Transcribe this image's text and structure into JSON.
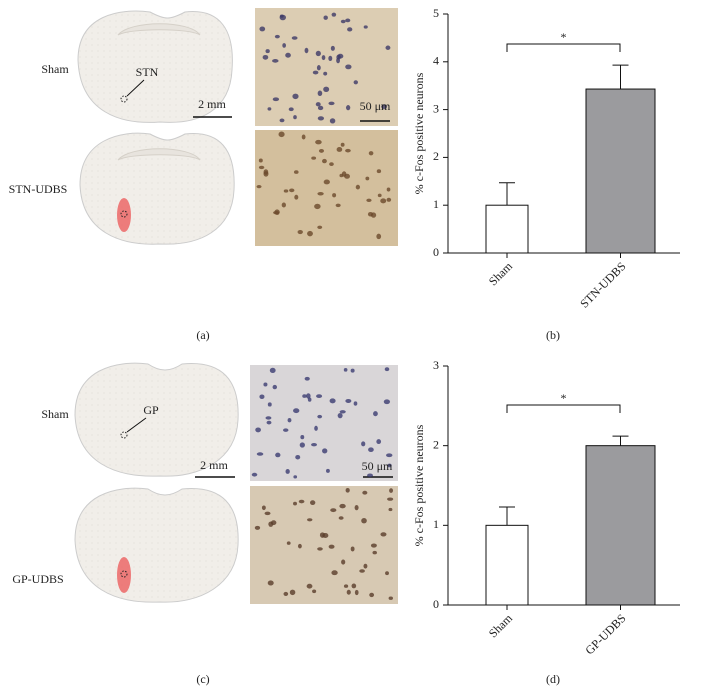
{
  "panels": [
    {
      "label": "(a)",
      "rows": [
        {
          "group": "Sham",
          "target": "STN",
          "brain_scale": "2 mm",
          "micro_scale": "50 μm"
        },
        {
          "group": "STN-UDBS"
        }
      ]
    },
    {
      "label": "(c)",
      "rows": [
        {
          "group": "Sham",
          "target": "GP",
          "brain_scale": "2 mm",
          "micro_scale": "50 μm"
        },
        {
          "group": "GP-UDBS"
        }
      ]
    }
  ],
  "chart_data": [
    {
      "type": "bar",
      "label": "(b)",
      "ylabel": "% c-Fos positive neurons",
      "categories": [
        "Sham",
        "STN-UDBS"
      ],
      "values": [
        1.0,
        3.43
      ],
      "errors": [
        0.47,
        0.5
      ],
      "colors": [
        "#ffffff",
        "#9b9b9e"
      ],
      "ylim": [
        0,
        5
      ],
      "yticks": [
        0,
        1,
        2,
        3,
        4,
        5
      ],
      "annotation": "*"
    },
    {
      "type": "bar",
      "label": "(d)",
      "ylabel": "% c-Fos positive neurons",
      "categories": [
        "Sham",
        "GP-UDBS"
      ],
      "values": [
        1.0,
        2.0
      ],
      "errors": [
        0.23,
        0.12
      ],
      "colors": [
        "#ffffff",
        "#9b9b9e"
      ],
      "ylim": [
        0,
        3
      ],
      "yticks": [
        0,
        1,
        2,
        3
      ],
      "annotation": "*"
    }
  ]
}
